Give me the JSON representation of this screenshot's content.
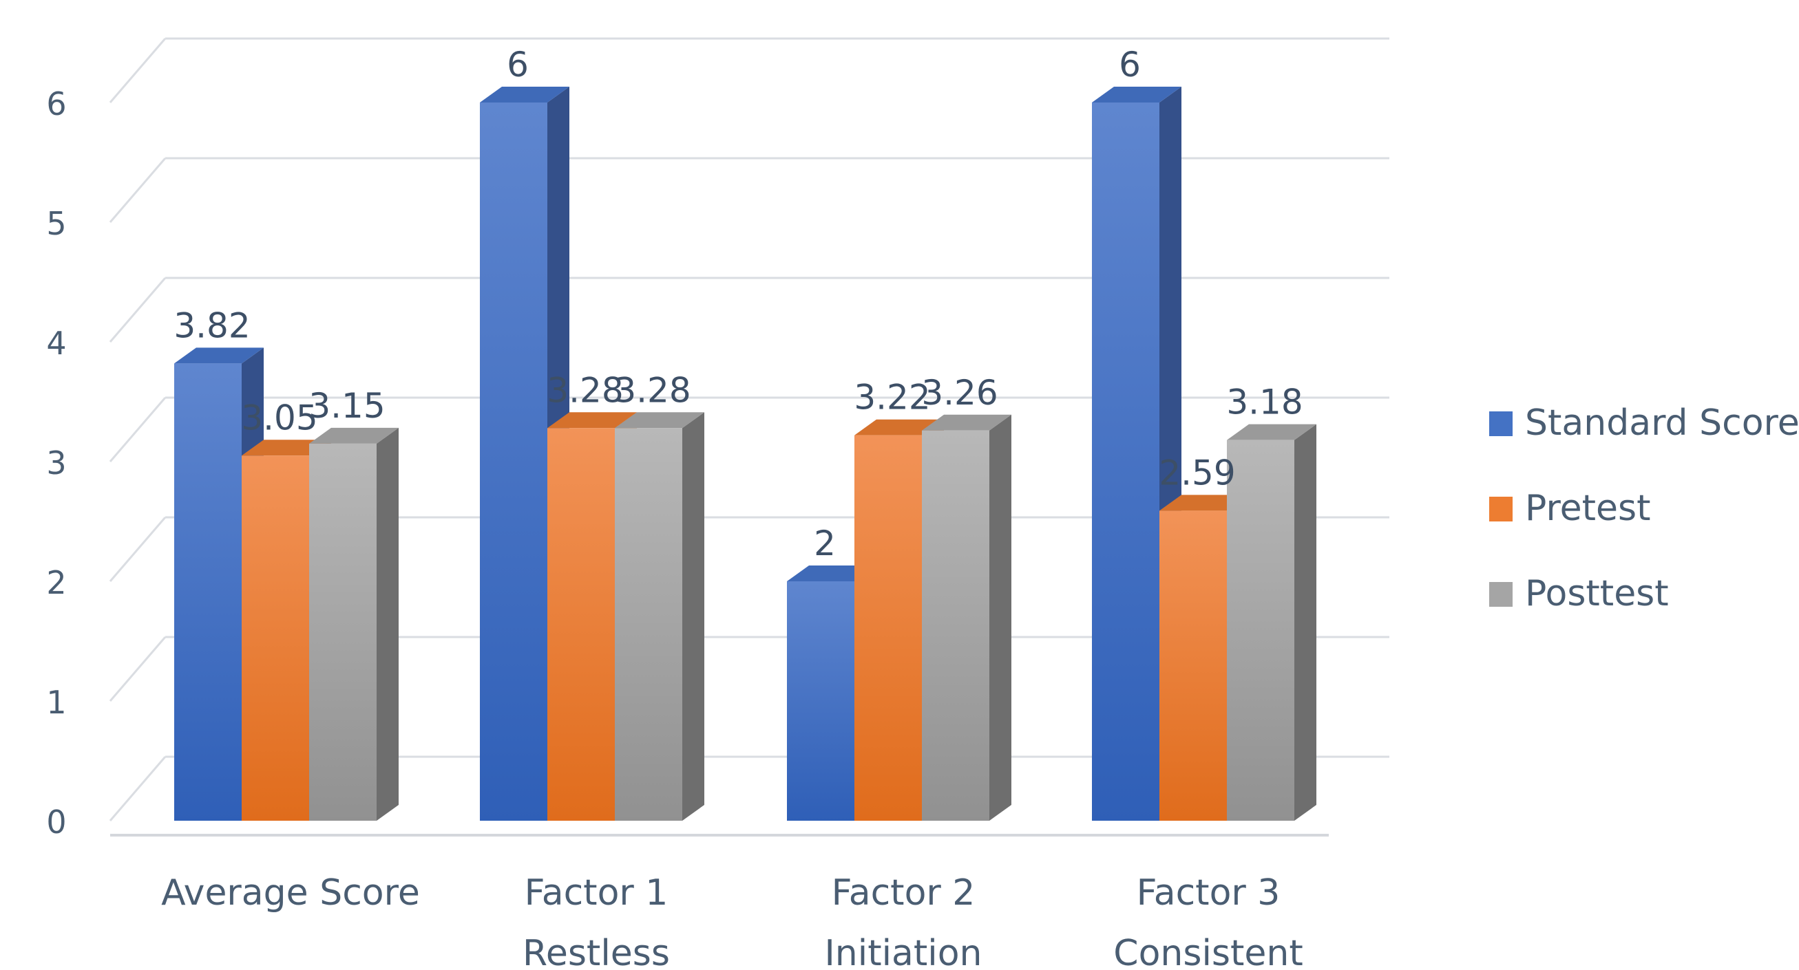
{
  "chart_data": {
    "type": "bar",
    "title": "",
    "xlabel": "",
    "ylabel": "",
    "ylim": [
      0,
      6
    ],
    "yticks": [
      0,
      1,
      2,
      3,
      4,
      5,
      6
    ],
    "grid": true,
    "legend_position": "right",
    "categories": [
      [
        "Average Score"
      ],
      [
        "Factor 1",
        "Restless"
      ],
      [
        "Factor 2",
        "Initiation"
      ],
      [
        "Factor 3",
        "Consistent"
      ]
    ],
    "series": [
      {
        "name": "Standard Score",
        "color": "#4472c4",
        "values": [
          3.82,
          6,
          2,
          6
        ],
        "labels": [
          "3.82",
          "6",
          "2",
          "6"
        ]
      },
      {
        "name": "Pretest",
        "color": "#ed7d31",
        "values": [
          3.05,
          3.28,
          3.22,
          2.59
        ],
        "labels": [
          "3.05",
          "3.28",
          "3.22",
          "2.59"
        ]
      },
      {
        "name": "Posttest",
        "color": "#a5a5a5",
        "values": [
          3.15,
          3.28,
          3.26,
          3.18
        ],
        "labels": [
          "3.15",
          "3.28",
          "3.26",
          "3.18"
        ]
      }
    ]
  }
}
